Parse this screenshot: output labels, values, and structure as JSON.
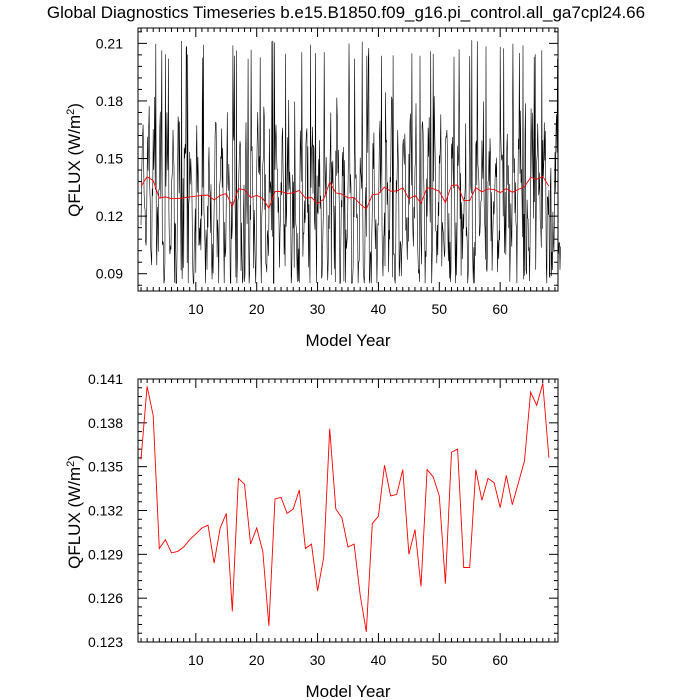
{
  "figure": {
    "title": "Global Diagnostics Timeseries b.e15.B1850.f09_g16.pi_control.all_ga7cpl24.66"
  },
  "colors": {
    "monthly_line": "#000000",
    "annual_line": "#ff0000",
    "axes": "#000000",
    "background": "#ffffff"
  },
  "chart_data": [
    {
      "type": "line",
      "name": "monthly-and-annual",
      "xlabel": "Model Year",
      "ylabel_main": "QFLUX (W/m",
      "ylabel_sup": "2",
      "ylabel_close": ")",
      "xlim": [
        0.5,
        69.5
      ],
      "ylim": [
        0.081,
        0.218
      ],
      "xticks": [
        10,
        20,
        30,
        40,
        50,
        60
      ],
      "xtick_labels": [
        "10",
        "20",
        "30",
        "40",
        "50",
        "60"
      ],
      "yticks": [
        0.09,
        0.12,
        0.15,
        0.18,
        0.21
      ],
      "ytick_labels": [
        "0.09",
        "0.12",
        "0.15",
        "0.18",
        "0.21"
      ],
      "series": [
        {
          "name": "monthly",
          "style": "black-thin",
          "generator": {
            "seed": 7,
            "count": 828,
            "center": 0.13,
            "low": 0.085,
            "high": 0.212
          }
        },
        {
          "name": "annual",
          "style": "red",
          "x_start": 1,
          "values_ref": "annual_means"
        }
      ]
    },
    {
      "type": "line",
      "name": "annual",
      "xlabel": "Model Year",
      "ylabel_main": "QFLUX (W/m",
      "ylabel_sup": "2",
      "ylabel_close": ")",
      "xlim": [
        0.5,
        69.5
      ],
      "ylim": [
        0.123,
        0.141
      ],
      "xticks": [
        10,
        20,
        30,
        40,
        50,
        60
      ],
      "xtick_labels": [
        "10",
        "20",
        "30",
        "40",
        "50",
        "60"
      ],
      "yticks": [
        0.123,
        0.126,
        0.129,
        0.132,
        0.135,
        0.138,
        0.141
      ],
      "ytick_labels": [
        "0.123",
        "0.126",
        "0.129",
        "0.132",
        "0.135",
        "0.138",
        "0.141"
      ],
      "series": [
        {
          "name": "annual",
          "style": "red",
          "x_start": 1,
          "values_ref": "annual_means"
        }
      ]
    }
  ],
  "annual_means": [
    0.1355,
    0.1405,
    0.1385,
    0.1294,
    0.13,
    0.1291,
    0.1292,
    0.1295,
    0.13,
    0.1304,
    0.1308,
    0.131,
    0.1284,
    0.1308,
    0.1318,
    0.1251,
    0.1342,
    0.1338,
    0.1297,
    0.1308,
    0.1292,
    0.1241,
    0.1328,
    0.1329,
    0.1318,
    0.1321,
    0.1334,
    0.1294,
    0.1297,
    0.1265,
    0.1288,
    0.1376,
    0.1321,
    0.1315,
    0.1295,
    0.1297,
    0.1262,
    0.1237,
    0.1311,
    0.1316,
    0.1351,
    0.133,
    0.1331,
    0.1348,
    0.129,
    0.1307,
    0.1268,
    0.1348,
    0.1343,
    0.133,
    0.127,
    0.136,
    0.1362,
    0.1281,
    0.1281,
    0.1348,
    0.1327,
    0.1342,
    0.1339,
    0.1322,
    0.1344,
    0.1324,
    0.1339,
    0.1354,
    0.1401,
    0.1392,
    0.1407,
    0.1356
  ]
}
